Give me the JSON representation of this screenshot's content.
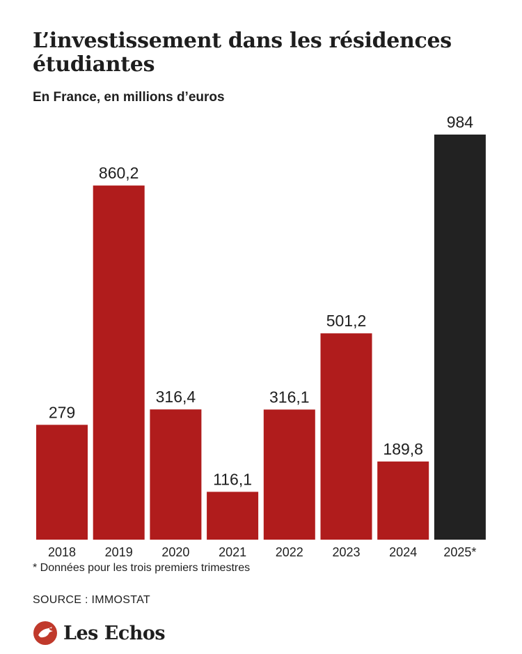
{
  "title": "L’investissement dans les résidences étudiantes",
  "subtitle": "En France, en millions d’euros",
  "footnote": "* Données pour les trois premiers trimestres",
  "source": "SOURCE : IMMOSTAT",
  "logo": {
    "text": "Les Echos",
    "icon": "les-echos-logo-icon"
  },
  "colors": {
    "bar": "#b01c1c",
    "highlight": "#222222",
    "text": "#1e1e1e"
  },
  "chart_data": {
    "type": "bar",
    "title": "L’investissement dans les résidences étudiantes",
    "subtitle": "En France, en millions d’euros",
    "categories": [
      "2018",
      "2019",
      "2020",
      "2021",
      "2022",
      "2023",
      "2024",
      "2025*"
    ],
    "values": [
      279,
      860.2,
      316.4,
      116.1,
      316.1,
      501.2,
      189.8,
      984
    ],
    "value_labels": [
      "279",
      "860,2",
      "316,4",
      "116,1",
      "316,1",
      "501,2",
      "189,8",
      "984"
    ],
    "highlight_index": 7,
    "ylim": [
      0,
      984
    ],
    "grid": false,
    "legend": "none"
  }
}
